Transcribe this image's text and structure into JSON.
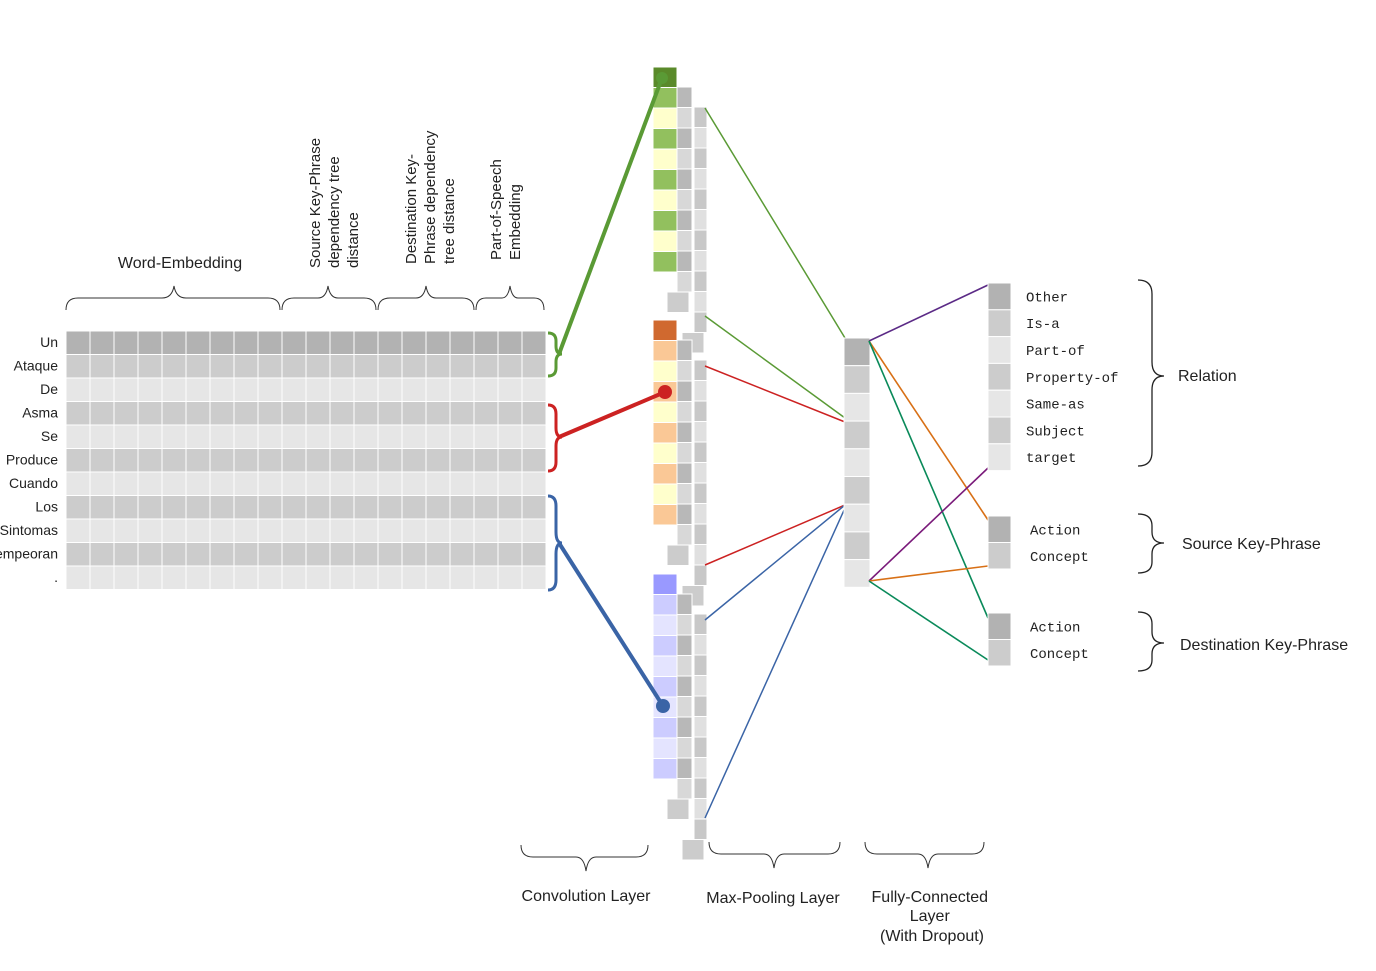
{
  "words": [
    "Un",
    "Ataque",
    "De",
    "Asma",
    "Se",
    "Produce",
    "Cuando",
    "Los",
    "Sintomas",
    "empeoran",
    "."
  ],
  "feature_groups": {
    "word_embedding": "Word-Embedding",
    "source_distance": [
      "Source Key-Phrase",
      "dependency tree",
      "distance"
    ],
    "destination_distance": [
      "Destination Key-",
      "Phrase dependency",
      "tree distance"
    ],
    "pos_embedding": [
      "Part-of-Speech",
      "Embedding"
    ]
  },
  "layers": {
    "convolution": "Convolution Layer",
    "max_pooling": "Max-Pooling Layer",
    "fully_connected": [
      "Fully-Connected",
      "Layer",
      "(With Dropout)"
    ]
  },
  "outputs": {
    "relation": {
      "label": "Relation",
      "classes": [
        "Other",
        "Is-a",
        "Part-of",
        "Property-of",
        "Same-as",
        "Subject",
        "target"
      ]
    },
    "source_key_phrase": {
      "label": "Source Key-Phrase",
      "classes": [
        "Action",
        "Concept"
      ]
    },
    "destination_key_phrase": {
      "label": "Destination Key-Phrase",
      "classes": [
        "Action",
        "Concept"
      ]
    }
  },
  "filter_colors": {
    "green": "#5a9a35",
    "red": "#cc2222",
    "blue": "#3a64a6",
    "green_light": "#92c05e",
    "green_pale": "#ffffcc",
    "orange_dark": "#d0692f",
    "orange_light": "#fac896",
    "blue_dark": "#9999ff",
    "blue_light": "#ccccff",
    "blue_pale": "#e4e4ff"
  },
  "connection_colors": {
    "purple": "#5b2a86",
    "orange": "#d87016",
    "teal": "#0a8a5a",
    "magenta": "#7a1a7a"
  }
}
